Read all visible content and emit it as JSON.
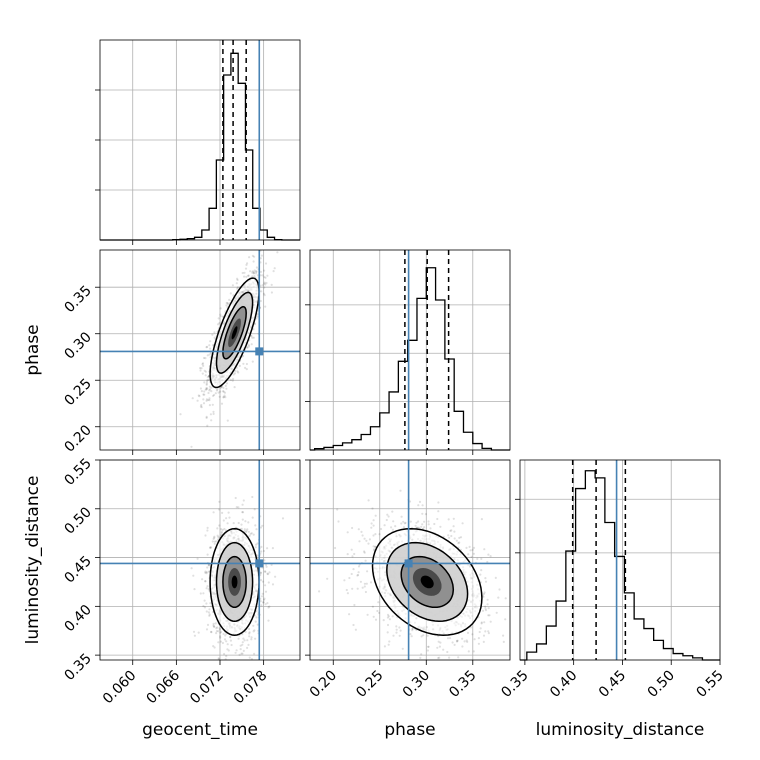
{
  "chart_data": {
    "type": "corner",
    "parameters": [
      {
        "name": "geocent_time",
        "range": [
          0.0555,
          0.083
        ],
        "ticks": [
          "0.060",
          "0.066",
          "0.072",
          "0.078"
        ],
        "tick_values": [
          0.06,
          0.066,
          0.072,
          0.078
        ],
        "truth": 0.0774,
        "quantiles": [
          0.0724,
          0.0738,
          0.0756
        ]
      },
      {
        "name": "phase",
        "range": [
          0.175,
          0.39
        ],
        "ticks": [
          "0.20",
          "0.25",
          "0.30",
          "0.35"
        ],
        "tick_values": [
          0.2,
          0.25,
          0.3,
          0.35
        ],
        "truth": 0.281,
        "quantiles": [
          0.277,
          0.301,
          0.324
        ]
      },
      {
        "name": "luminosity_distance",
        "range": [
          0.345,
          0.55
        ],
        "ticks": [
          "0.35",
          "0.40",
          "0.45",
          "0.50",
          "0.55"
        ],
        "tick_values": [
          0.35,
          0.4,
          0.45,
          0.5,
          0.55
        ],
        "truth": 0.444,
        "quantiles": [
          0.399,
          0.423,
          0.453
        ]
      }
    ],
    "histograms": [
      {
        "param": "geocent_time",
        "bin_edges": [
          0.0655,
          0.0665,
          0.0675,
          0.0685,
          0.0695,
          0.0705,
          0.0715,
          0.0725,
          0.0735,
          0.0745,
          0.0755,
          0.0765,
          0.0775,
          0.0785,
          0.0795,
          0.0805
        ],
        "counts": [
          1,
          2,
          4,
          8,
          30,
          95,
          240,
          495,
          560,
          470,
          270,
          95,
          30,
          8,
          1
        ],
        "ymax": 600
      },
      {
        "param": "phase",
        "bin_edges": [
          0.18,
          0.19,
          0.2,
          0.21,
          0.22,
          0.23,
          0.24,
          0.25,
          0.26,
          0.27,
          0.28,
          0.29,
          0.3,
          0.31,
          0.32,
          0.33,
          0.34,
          0.35,
          0.36,
          0.37
        ],
        "counts": [
          4,
          8,
          14,
          22,
          32,
          48,
          72,
          115,
          180,
          275,
          340,
          470,
          565,
          465,
          282,
          120,
          55,
          20,
          5
        ],
        "ymax": 620
      },
      {
        "param": "luminosity_distance",
        "bin_edges": [
          0.352,
          0.362,
          0.372,
          0.382,
          0.392,
          0.402,
          0.412,
          0.422,
          0.432,
          0.442,
          0.452,
          0.462,
          0.472,
          0.482,
          0.492,
          0.502,
          0.512,
          0.522,
          0.532
        ],
        "counts": [
          22,
          45,
          95,
          165,
          305,
          480,
          530,
          510,
          385,
          290,
          188,
          115,
          88,
          55,
          32,
          18,
          12,
          6
        ],
        "ymax": 560
      }
    ],
    "truth_color": "#4682b4",
    "line_color": "#000000"
  }
}
